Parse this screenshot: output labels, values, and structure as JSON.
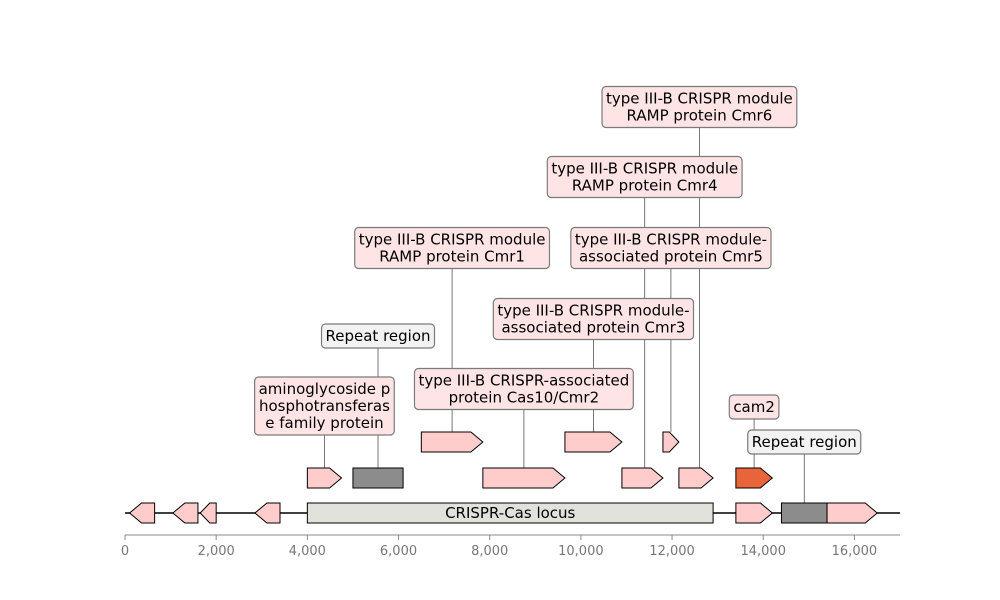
{
  "chart_data": {
    "type": "genomic-map",
    "xlim": [
      0,
      17000
    ],
    "axis": {
      "ticks": [
        0,
        2000,
        4000,
        6000,
        8000,
        10000,
        12000,
        14000,
        16000
      ],
      "tick_labels": [
        "0",
        "2,000",
        "4,000",
        "6,000",
        "8,000",
        "10,000",
        "12,000",
        "14,000",
        "16,000"
      ]
    },
    "colors": {
      "gene": "#ffcccc",
      "repeat": "#8c8c8c",
      "locus": "#e2e2dc",
      "cam": "#e8643a",
      "label_gene": "#ffe4e6",
      "label_repeat": "#f2f2f2",
      "outline": "#000000",
      "leader": "#555555"
    },
    "locus": {
      "label": "CRISPR-Cas locus",
      "start": 4000,
      "end": 12900
    },
    "features": [
      {
        "id": "g1",
        "start": 100,
        "end": 650,
        "strand": -1,
        "level": 0,
        "kind": "gene"
      },
      {
        "id": "g2",
        "start": 1050,
        "end": 1600,
        "strand": -1,
        "level": 0,
        "kind": "gene"
      },
      {
        "id": "g3",
        "start": 1650,
        "end": 2000,
        "strand": -1,
        "level": 0,
        "kind": "gene"
      },
      {
        "id": "g4",
        "start": 2850,
        "end": 3400,
        "strand": -1,
        "level": 0,
        "kind": "gene"
      },
      {
        "id": "g5",
        "start": 13400,
        "end": 14200,
        "strand": 1,
        "level": 0,
        "kind": "gene"
      },
      {
        "id": "r2",
        "start": 14400,
        "end": 15400,
        "strand": 0,
        "level": 0,
        "kind": "repeat",
        "label": "Repeat region",
        "label_y": 442
      },
      {
        "id": "g6",
        "start": 15400,
        "end": 16500,
        "strand": 1,
        "level": 0,
        "kind": "gene"
      },
      {
        "id": "aph",
        "start": 4000,
        "end": 4750,
        "strand": 1,
        "level": 1,
        "kind": "gene",
        "label": "aminoglycoside p\nhosphotransferas\ne family protein",
        "label_y": 406
      },
      {
        "id": "r1",
        "start": 5000,
        "end": 6100,
        "strand": 0,
        "level": 1,
        "kind": "repeat",
        "label": "Repeat region",
        "label_y": 336
      },
      {
        "id": "cmr2",
        "start": 7850,
        "end": 9650,
        "strand": 1,
        "level": 1,
        "kind": "gene",
        "label": "type III-B CRISPR-associated\nprotein Cas10/Cmr2",
        "label_y": 389
      },
      {
        "id": "cmr6",
        "start": 10900,
        "end": 11800,
        "strand": 1,
        "level": 1,
        "kind": "gene"
      },
      {
        "id": "cmr4",
        "start": 12150,
        "end": 12900,
        "strand": 1,
        "level": 1,
        "kind": "gene"
      },
      {
        "id": "cam2",
        "start": 13400,
        "end": 14200,
        "strand": 1,
        "level": 1,
        "kind": "cam",
        "label": "cam2",
        "label_y": 407
      },
      {
        "id": "cmr1",
        "start": 6500,
        "end": 7850,
        "strand": 1,
        "level": 2,
        "kind": "gene",
        "label": "type III-B CRISPR module\nRAMP protein Cmr1",
        "label_y": 248
      },
      {
        "id": "cmr3",
        "start": 9650,
        "end": 10900,
        "strand": 1,
        "level": 2,
        "kind": "gene",
        "label": "type III-B CRISPR module-\nassociated protein Cmr3",
        "label_y": 319
      },
      {
        "id": "cmr5",
        "start": 11800,
        "end": 12150,
        "strand": 1,
        "level": 2,
        "kind": "gene",
        "label": "type III-B CRISPR module-\nassociated protein Cmr5",
        "label_y": 248
      }
    ],
    "extra_labels": [
      {
        "label": "type III-B CRISPR module\nRAMP protein Cmr4",
        "x": 11400,
        "label_y": 177,
        "target_level": 1
      },
      {
        "label": "type III-B CRISPR module\nRAMP protein Cmr6",
        "x": 12600,
        "label_y": 107,
        "target_level": 1
      }
    ]
  }
}
